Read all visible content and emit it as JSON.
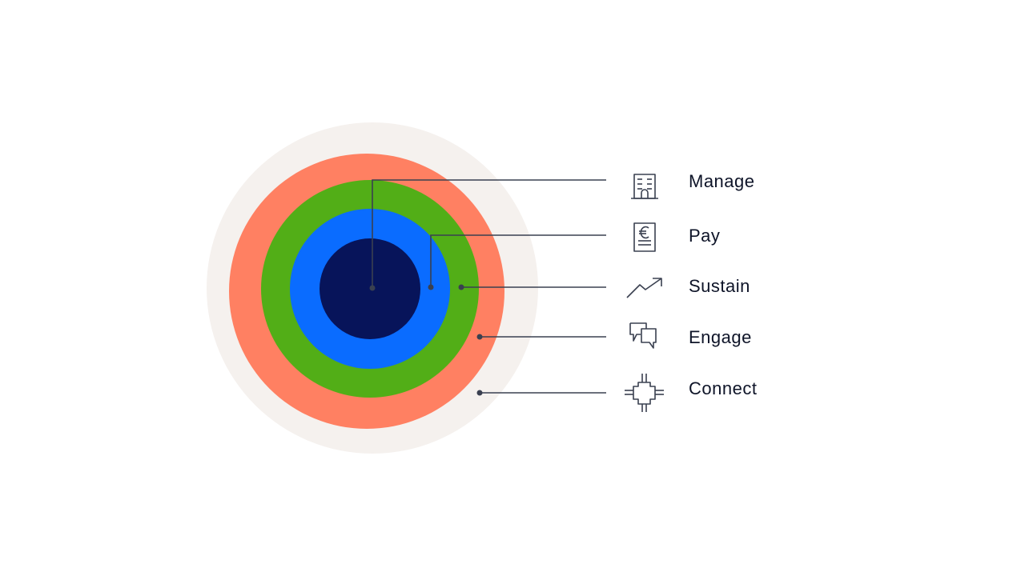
{
  "colors": {
    "outer": "#f5f1ee",
    "ring_orange": "#ff8062",
    "ring_green": "#52ae17",
    "ring_blue": "#0a6cff",
    "core_navy": "#07145a",
    "line": "#3a4050",
    "text": "#0e1428"
  },
  "items": [
    {
      "label": "Manage",
      "icon": "building-icon"
    },
    {
      "label": "Pay",
      "icon": "euro-invoice-icon"
    },
    {
      "label": "Sustain",
      "icon": "trend-up-icon"
    },
    {
      "label": "Engage",
      "icon": "chat-bubbles-icon"
    },
    {
      "label": "Connect",
      "icon": "connector-icon"
    }
  ]
}
